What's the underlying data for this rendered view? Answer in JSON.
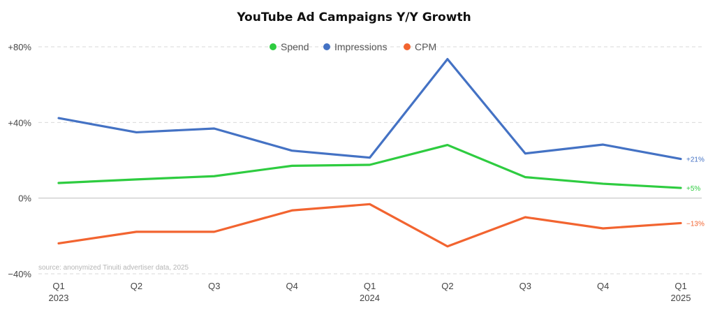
{
  "chart_data": {
    "type": "line",
    "title": "YouTube Ad Campaigns Y/Y Growth",
    "xlabel": "",
    "ylabel": "",
    "categories": [
      "Q1",
      "Q2",
      "Q3",
      "Q4",
      "Q1",
      "Q2",
      "Q3",
      "Q4",
      "Q1"
    ],
    "year_labels": [
      "2023",
      "",
      "",
      "",
      "2024",
      "",
      "",
      "",
      "2025"
    ],
    "ylim": [
      -40,
      80
    ],
    "yticks": [
      {
        "value": 80,
        "label": "+80%"
      },
      {
        "value": 40,
        "label": "+40%"
      },
      {
        "value": 0,
        "label": "0%"
      },
      {
        "value": -40,
        "label": "−40%"
      }
    ],
    "grid": true,
    "legend_position": "top-center",
    "series": [
      {
        "name": "Spend",
        "color": "#2ecc40",
        "values": [
          8,
          9.9,
          11.6,
          17.1,
          17.6,
          28.1,
          11.1,
          7.6,
          5.4
        ],
        "end_label": "+5%"
      },
      {
        "name": "Impressions",
        "color": "#4472c4",
        "values": [
          42.3,
          34.8,
          36.8,
          25.1,
          21.4,
          73.5,
          23.6,
          28.3,
          20.7
        ],
        "end_label": "+21%"
      },
      {
        "name": "CPM",
        "color": "#f26430",
        "values": [
          -23.9,
          -17.8,
          -17.8,
          -6.5,
          -3.2,
          -25.5,
          -10.1,
          -16,
          -13.2
        ],
        "end_label": "−13%"
      }
    ],
    "annotations": [
      "source: anonymized Tinuiti advertiser data, 2025"
    ]
  }
}
